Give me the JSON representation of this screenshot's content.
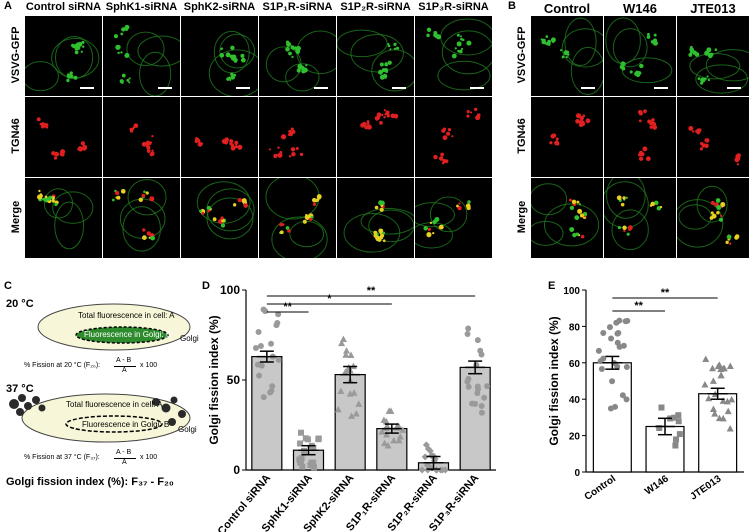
{
  "panelA": {
    "label": "A",
    "columns": [
      "Control siRNA",
      "SphK1-siRNA",
      "SphK2-siRNA",
      "S1P₁R-siRNA",
      "S1P₂R-siRNA",
      "S1P₃R-siRNA"
    ],
    "rows": [
      "VSVG-GFP",
      "TGN46",
      "Merge"
    ]
  },
  "panelB": {
    "label": "B",
    "columns": [
      "Control",
      "W146",
      "JTE013"
    ],
    "rows": [
      "VSVG-GFP",
      "TGN46",
      "Merge"
    ]
  },
  "panelC": {
    "label": "C",
    "temp20": "20 °C",
    "temp37": "37 °C",
    "total20": "Total fluorescence in cell: A",
    "golgi20": "Fluorescence in Golgi: B",
    "golgiTag20": "Golgi",
    "fission20": "% Fission at 20 °C (F₂₀):",
    "frac_num": "A - B",
    "frac_den": "A",
    "times100": "x 100",
    "total37": "Total fluorescence in cell: A",
    "golgi37": "Fluorescence in Golgi: B",
    "golgiTag37": "Golgi",
    "fission37": "% Fission at 37 °C (F₃₇):",
    "index_label": "Golgi fission index (%): F₃₇ - F₂₀"
  },
  "chart_data": [
    {
      "panel": "D",
      "type": "bar",
      "ylabel": "Golgi fission index (%)",
      "ylim": [
        0,
        100
      ],
      "yticks": [
        0,
        50,
        100
      ],
      "categories": [
        "Control siRNA",
        "SphK1-siRNA",
        "SphK2-siRNA",
        "S1P₁R-siRNA",
        "S1P₂R-siRNA",
        "S1P₃R-siRNA"
      ],
      "values": [
        63,
        11,
        53,
        23,
        4,
        57
      ],
      "sem": [
        3,
        2.5,
        4.5,
        2.5,
        3.5,
        3.5
      ],
      "bar_color": "#c8c8c8",
      "significance": [
        {
          "from": 0,
          "to": 5,
          "label": "**"
        },
        {
          "from": 0,
          "to": 3,
          "label": "*"
        },
        {
          "from": 0,
          "to": 1,
          "label": "**"
        }
      ]
    },
    {
      "panel": "E",
      "type": "bar",
      "ylabel": "Golgi fission index (%)",
      "ylim": [
        0,
        100
      ],
      "yticks": [
        0,
        20,
        40,
        60,
        80,
        100
      ],
      "categories": [
        "Control",
        "W146",
        "JTE013"
      ],
      "values": [
        60,
        25,
        43
      ],
      "sem": [
        3.5,
        4.5,
        3
      ],
      "bar_color": "#ffffff",
      "significance": [
        {
          "from": 0,
          "to": 2,
          "label": "**"
        },
        {
          "from": 0,
          "to": 1,
          "label": "**"
        }
      ]
    }
  ]
}
